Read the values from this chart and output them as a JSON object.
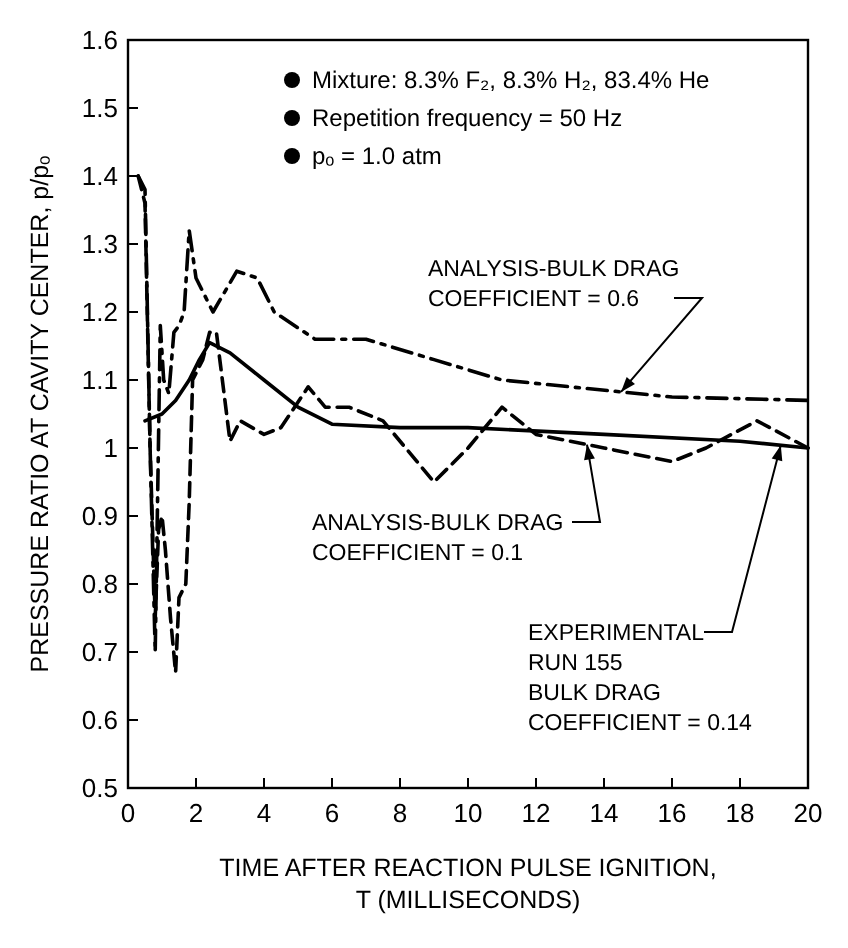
{
  "chart_data": {
    "type": "line",
    "xlabel": "TIME AFTER REACTION PULSE IGNITION,\nT (MILLISECONDS)",
    "ylabel": "PRESSURE RATIO AT CAVITY CENTER, p/pₒ",
    "xlim": [
      0,
      20
    ],
    "ylim": [
      0.5,
      1.6
    ],
    "xticks": [
      0,
      2,
      4,
      6,
      8,
      10,
      12,
      14,
      16,
      18,
      20
    ],
    "yticks": [
      0.5,
      0.6,
      0.7,
      0.8,
      0.9,
      1.0,
      1.1,
      1.2,
      1.3,
      1.4,
      1.5,
      1.6
    ],
    "grid": false,
    "marker": "none",
    "annotations": [
      "Mixture:  8.3% F₂, 8.3% H₂, 83.4% He",
      "Repetition frequency = 50 Hz",
      "pₒ = 1.0 atm"
    ],
    "series": [
      {
        "name": "ANALYSIS-BULK DRAG\nCOEFFICIENT = 0.6",
        "color": "#000000",
        "line_style": "dashdot",
        "x": [
          0.3,
          0.5,
          0.65,
          0.8,
          0.95,
          1.05,
          1.2,
          1.35,
          1.5,
          1.65,
          1.8,
          2.0,
          2.5,
          3.2,
          3.8,
          4.3,
          5.5,
          7,
          9,
          11,
          13,
          16,
          20
        ],
        "values": [
          1.4,
          1.38,
          1.0,
          0.7,
          1.18,
          1.1,
          1.08,
          1.17,
          1.18,
          1.2,
          1.32,
          1.25,
          1.2,
          1.26,
          1.25,
          1.2,
          1.16,
          1.16,
          1.13,
          1.1,
          1.09,
          1.075,
          1.07
        ]
      },
      {
        "name": "ANALYSIS-BULK DRAG\nCOEFFICIENT = 0.1",
        "color": "#000000",
        "line_style": "dashed",
        "x": [
          0.3,
          0.5,
          0.65,
          0.8,
          0.9,
          1.0,
          1.1,
          1.25,
          1.4,
          1.5,
          1.7,
          1.8,
          1.9,
          2.2,
          2.4,
          2.6,
          3.0,
          3.3,
          4.0,
          4.5,
          5.3,
          5.8,
          6.5,
          7.5,
          9,
          10,
          11,
          12,
          14,
          16,
          17,
          18.5,
          20
        ],
        "values": [
          1.4,
          1.36,
          1.0,
          0.75,
          0.88,
          0.9,
          0.85,
          0.75,
          0.67,
          0.78,
          0.8,
          0.92,
          1.1,
          1.13,
          1.17,
          1.17,
          1.01,
          1.04,
          1.02,
          1.03,
          1.09,
          1.06,
          1.06,
          1.04,
          0.95,
          1.0,
          1.06,
          1.02,
          1.0,
          0.98,
          1.0,
          1.04,
          1.0
        ]
      },
      {
        "name": "EXPERIMENTAL\nRUN 155\nBULK DRAG\nCOEFFICIENT = 0.14",
        "color": "#000000",
        "line_style": "solid",
        "x": [
          0.5,
          1.0,
          1.4,
          1.8,
          2.1,
          2.4,
          3.0,
          4.0,
          5.0,
          6.0,
          8,
          10,
          14,
          18,
          20
        ],
        "values": [
          1.04,
          1.05,
          1.07,
          1.1,
          1.13,
          1.155,
          1.14,
          1.1,
          1.06,
          1.035,
          1.03,
          1.03,
          1.02,
          1.01,
          1.0
        ]
      }
    ]
  }
}
